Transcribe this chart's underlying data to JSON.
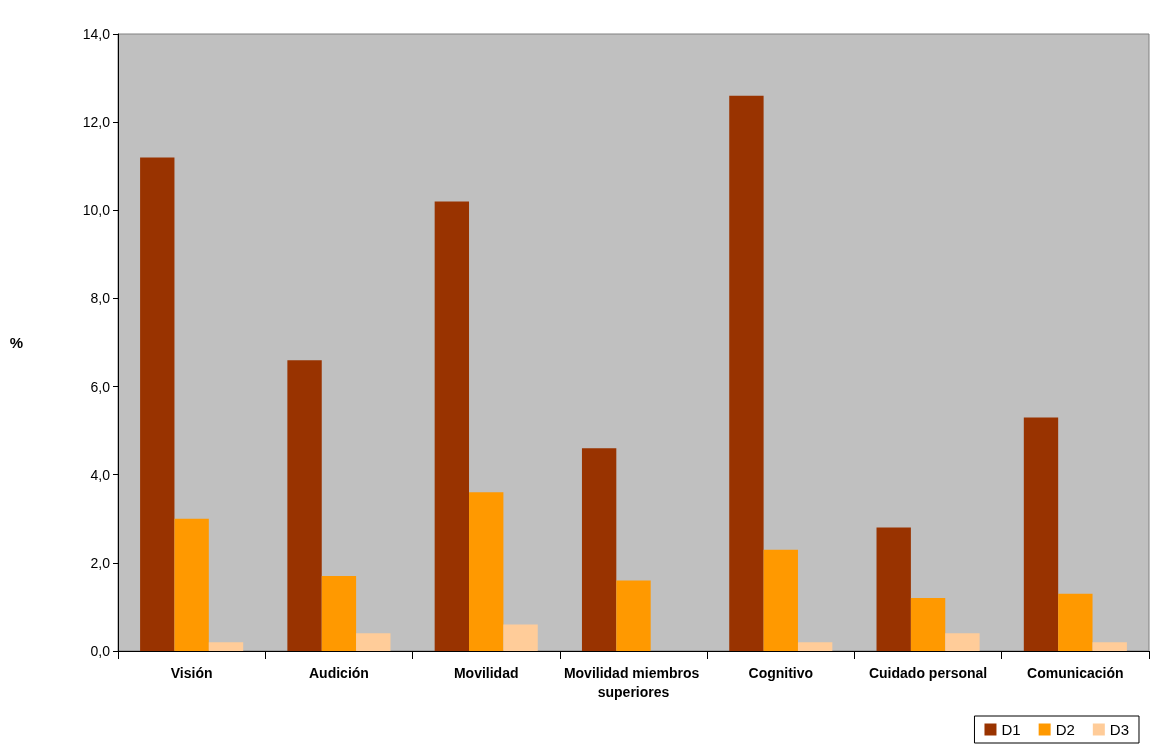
{
  "chart_data": {
    "type": "bar",
    "ylabel": "%",
    "categories": [
      "Visión",
      "Audición",
      "Movilidad",
      "Movilidad miembros superiores",
      "Cognitivo",
      "Cuidado personal",
      "Comunicación"
    ],
    "series": [
      {
        "name": "D1",
        "color": "#993300",
        "values": [
          11.2,
          6.6,
          10.2,
          4.6,
          12.6,
          2.8,
          5.3
        ]
      },
      {
        "name": "D2",
        "color": "#ff9900",
        "values": [
          3.0,
          1.7,
          3.6,
          1.6,
          2.3,
          1.2,
          1.3
        ]
      },
      {
        "name": "D3",
        "color": "#ffcc99",
        "values": [
          0.2,
          0.4,
          0.6,
          0.0,
          0.2,
          0.4,
          0.2
        ]
      }
    ],
    "ylim": [
      0,
      14
    ],
    "yticks": [
      {
        "value": 0,
        "label": "0,0"
      },
      {
        "value": 2,
        "label": "2,0"
      },
      {
        "value": 4,
        "label": "4,0"
      },
      {
        "value": 6,
        "label": "6,0"
      },
      {
        "value": 8,
        "label": "8,0"
      },
      {
        "value": 10,
        "label": "10,0"
      },
      {
        "value": 12,
        "label": "12,0"
      },
      {
        "value": 14,
        "label": "14,0"
      }
    ],
    "grid": false,
    "legend": "bottom right"
  }
}
